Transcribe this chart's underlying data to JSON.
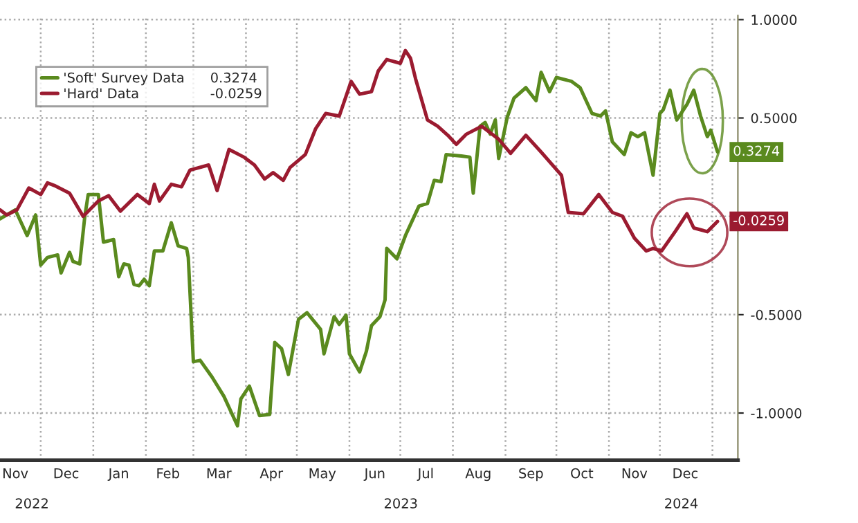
{
  "chart_data": {
    "type": "line",
    "x": [
      "2022-11-07",
      "2022-11-16",
      "2022-11-23",
      "2022-11-28",
      "2022-12-01",
      "2022-12-05",
      "2022-12-11",
      "2022-12-13",
      "2022-12-18",
      "2022-12-20",
      "2022-12-24",
      "2022-12-27",
      "2022-12-29",
      "2023-01-04",
      "2023-01-07",
      "2023-01-13",
      "2023-01-16",
      "2023-01-19",
      "2023-01-22",
      "2023-01-25",
      "2023-01-28",
      "2023-01-31",
      "2023-02-03",
      "2023-02-06",
      "2023-02-11",
      "2023-02-16",
      "2023-02-20",
      "2023-02-25",
      "2023-02-26",
      "2023-03-01",
      "2023-03-05",
      "2023-03-12",
      "2023-03-19",
      "2023-03-27",
      "2023-03-29",
      "2023-04-03",
      "2023-04-09",
      "2023-04-15",
      "2023-04-18",
      "2023-04-22",
      "2023-04-26",
      "2023-05-02",
      "2023-05-07",
      "2023-05-15",
      "2023-05-17",
      "2023-05-23",
      "2023-05-26",
      "2023-05-30",
      "2023-06-01",
      "2023-06-07",
      "2023-06-11",
      "2023-06-14",
      "2023-06-19",
      "2023-06-22",
      "2023-06-23",
      "2023-06-29",
      "2023-07-04",
      "2023-07-12",
      "2023-07-17",
      "2023-07-21",
      "2023-07-25",
      "2023-07-28",
      "2023-08-06",
      "2023-08-11",
      "2023-08-13",
      "2023-08-17",
      "2023-08-20",
      "2023-08-23",
      "2023-08-26",
      "2023-08-28",
      "2023-09-02",
      "2023-09-06",
      "2023-09-13",
      "2023-09-19",
      "2023-09-22",
      "2023-09-27",
      "2023-10-01",
      "2023-10-10",
      "2023-10-15",
      "2023-10-22",
      "2023-10-27",
      "2023-10-30",
      "2023-11-03",
      "2023-11-10",
      "2023-11-14",
      "2023-11-18",
      "2023-11-22",
      "2023-11-27",
      "2023-12-01",
      "2023-12-03",
      "2023-12-07",
      "2023-12-11",
      "2023-12-17",
      "2023-12-21",
      "2023-12-25",
      "2023-12-29",
      "2023-12-31",
      "2024-01-04"
    ],
    "series": [
      {
        "name": "'Soft' Survey Data",
        "color": "#5a8a1e",
        "values": [
          -0.013,
          0.033,
          -0.098,
          0.007,
          -0.248,
          -0.209,
          -0.196,
          -0.288,
          -0.183,
          -0.229,
          -0.242,
          0.0,
          0.111,
          0.111,
          -0.131,
          -0.118,
          -0.307,
          -0.242,
          -0.248,
          -0.346,
          -0.353,
          -0.32,
          -0.353,
          -0.176,
          -0.176,
          -0.033,
          -0.15,
          -0.163,
          -0.209,
          -0.739,
          -0.732,
          -0.817,
          -0.915,
          -1.065,
          -0.928,
          -0.863,
          -1.013,
          -1.007,
          -0.641,
          -0.673,
          -0.804,
          -0.523,
          -0.49,
          -0.575,
          -0.699,
          -0.51,
          -0.549,
          -0.503,
          -0.699,
          -0.791,
          -0.686,
          -0.556,
          -0.51,
          -0.425,
          -0.163,
          -0.216,
          -0.098,
          0.052,
          0.065,
          0.183,
          0.176,
          0.314,
          0.307,
          0.301,
          0.118,
          0.458,
          0.477,
          0.418,
          0.49,
          0.294,
          0.503,
          0.601,
          0.654,
          0.588,
          0.732,
          0.634,
          0.706,
          0.686,
          0.654,
          0.523,
          0.51,
          0.536,
          0.379,
          0.314,
          0.425,
          0.405,
          0.425,
          0.209,
          0.523,
          0.542,
          0.641,
          0.49,
          0.569,
          0.641,
          0.51,
          0.405,
          0.438,
          0.3274
        ],
        "value_labels": [
          null,
          null,
          null,
          null,
          null,
          null,
          null,
          null,
          null,
          null,
          null,
          null,
          null,
          null,
          null,
          null,
          null,
          null,
          null,
          null,
          null,
          null,
          null,
          null,
          null,
          null,
          null,
          null,
          null,
          null,
          null,
          null,
          null,
          null,
          null,
          null,
          null,
          null,
          null,
          null,
          null,
          null,
          null,
          null,
          null,
          null,
          null,
          null,
          null,
          null,
          null,
          null,
          null,
          null,
          null,
          null,
          null,
          null,
          null,
          null,
          null,
          null,
          null,
          null,
          null,
          null,
          null,
          null,
          null,
          null,
          null,
          null,
          null,
          null,
          null,
          null,
          null,
          null,
          null,
          null,
          null,
          null,
          null,
          null,
          null,
          null,
          null,
          null,
          null,
          null,
          null,
          null,
          null,
          null,
          null,
          null,
          null,
          "0.3274"
        ]
      },
      {
        "name": "'Hard' Data",
        "color": "#9b1b30",
        "x": [
          "2022-11-07",
          "2022-11-11",
          "2022-11-17",
          "2022-11-24",
          "2022-12-01",
          "2022-12-05",
          "2022-12-09",
          "2022-12-18",
          "2022-12-26",
          "2023-01-04",
          "2023-01-10",
          "2023-01-17",
          "2023-01-27",
          "2023-02-03",
          "2023-02-06",
          "2023-02-09",
          "2023-02-16",
          "2023-02-22",
          "2023-02-27",
          "2023-03-10",
          "2023-03-15",
          "2023-03-22",
          "2023-03-31",
          "2023-04-06",
          "2023-04-12",
          "2023-04-17",
          "2023-04-23",
          "2023-04-27",
          "2023-05-06",
          "2023-05-12",
          "2023-05-18",
          "2023-05-26",
          "2023-06-02",
          "2023-06-07",
          "2023-06-14",
          "2023-06-18",
          "2023-06-23",
          "2023-07-01",
          "2023-07-04",
          "2023-07-07",
          "2023-07-10",
          "2023-07-17",
          "2023-07-23",
          "2023-07-29",
          "2023-08-03",
          "2023-08-09",
          "2023-08-18",
          "2023-08-28",
          "2023-09-04",
          "2023-09-13",
          "2023-09-22",
          "2023-10-04",
          "2023-10-08",
          "2023-10-17",
          "2023-10-26",
          "2023-11-03",
          "2023-11-09",
          "2023-11-16",
          "2023-11-23",
          "2023-11-27",
          "2023-12-02",
          "2023-12-10",
          "2023-12-17",
          "2023-12-21",
          "2023-12-29",
          "2024-01-04"
        ],
        "values": [
          0.033,
          0.007,
          0.033,
          0.144,
          0.111,
          0.17,
          0.157,
          0.118,
          0.0,
          0.078,
          0.105,
          0.026,
          0.111,
          0.065,
          0.163,
          0.078,
          0.163,
          0.15,
          0.235,
          0.261,
          0.131,
          0.34,
          0.3,
          0.261,
          0.19,
          0.222,
          0.183,
          0.248,
          0.314,
          0.444,
          0.523,
          0.51,
          0.686,
          0.621,
          0.634,
          0.739,
          0.797,
          0.778,
          0.843,
          0.804,
          0.699,
          0.49,
          0.458,
          0.412,
          0.366,
          0.418,
          0.458,
          0.392,
          0.32,
          0.412,
          0.327,
          0.209,
          0.02,
          0.013,
          0.111,
          0.02,
          0.0,
          -0.111,
          -0.176,
          -0.163,
          -0.176,
          -0.078,
          0.013,
          -0.059,
          -0.078,
          -0.0259
        ],
        "value_labels": [
          null,
          null,
          null,
          null,
          null,
          null,
          null,
          null,
          null,
          null,
          null,
          null,
          null,
          null,
          null,
          null,
          null,
          null,
          null,
          null,
          null,
          null,
          null,
          null,
          null,
          null,
          null,
          null,
          null,
          null,
          null,
          null,
          null,
          null,
          null,
          null,
          null,
          null,
          null,
          null,
          null,
          null,
          null,
          null,
          null,
          null,
          null,
          null,
          null,
          null,
          null,
          null,
          null,
          null,
          null,
          null,
          null,
          null,
          null,
          null,
          null,
          null,
          null,
          null,
          null,
          "-0.0259"
        ]
      }
    ],
    "xlim": [
      "2022-11-07",
      "2024-01-16"
    ],
    "xticks": [
      {
        "value": "2022-12-01",
        "label": null
      },
      {
        "value": "2023-01-01",
        "label": null
      },
      {
        "value": "2023-02-01",
        "label": null
      },
      {
        "value": "2023-03-01",
        "label": null
      },
      {
        "value": "2023-04-01",
        "label": null
      },
      {
        "value": "2023-05-01",
        "label": null
      },
      {
        "value": "2023-06-01",
        "label": null
      },
      {
        "value": "2023-07-01",
        "label": null
      },
      {
        "value": "2023-08-01",
        "label": null
      },
      {
        "value": "2023-09-01",
        "label": null
      },
      {
        "value": "2023-10-01",
        "label": null
      },
      {
        "value": "2023-11-01",
        "label": null
      },
      {
        "value": "2023-12-01",
        "label": null
      },
      {
        "value": "2024-01-01",
        "label": null
      },
      {
        "value": "2022-11-16",
        "label": "Nov"
      },
      {
        "value": "2022-12-16",
        "label": "Dec"
      },
      {
        "value": "2023-01-16",
        "label": "Jan"
      },
      {
        "value": "2023-02-14",
        "label": "Feb"
      },
      {
        "value": "2023-03-16",
        "label": "Mar"
      },
      {
        "value": "2023-04-16",
        "label": "Apr"
      },
      {
        "value": "2023-05-16",
        "label": "May"
      },
      {
        "value": "2023-06-16",
        "label": "Jun"
      },
      {
        "value": "2023-07-16",
        "label": "Jul"
      },
      {
        "value": "2023-08-16",
        "label": "Aug"
      },
      {
        "value": "2023-09-16",
        "label": "Sep"
      },
      {
        "value": "2023-10-16",
        "label": "Oct"
      },
      {
        "value": "2023-11-16",
        "label": "Nov"
      },
      {
        "value": "2023-12-16",
        "label": "Dec"
      }
    ],
    "ylim": [
      -1.24,
      1.02
    ],
    "yticks": [
      {
        "value": 1,
        "label": "1.0000"
      },
      {
        "value": 0.5,
        "label": "0.5000"
      },
      {
        "value": 0,
        "label": null
      },
      {
        "value": -0.5,
        "label": "-0.5000"
      },
      {
        "value": -1,
        "label": "-1.0000"
      }
    ],
    "annotations": [
      "2022",
      "2023",
      "2024"
    ],
    "grid": true,
    "legend": "top left",
    "line_style": "solid"
  }
}
